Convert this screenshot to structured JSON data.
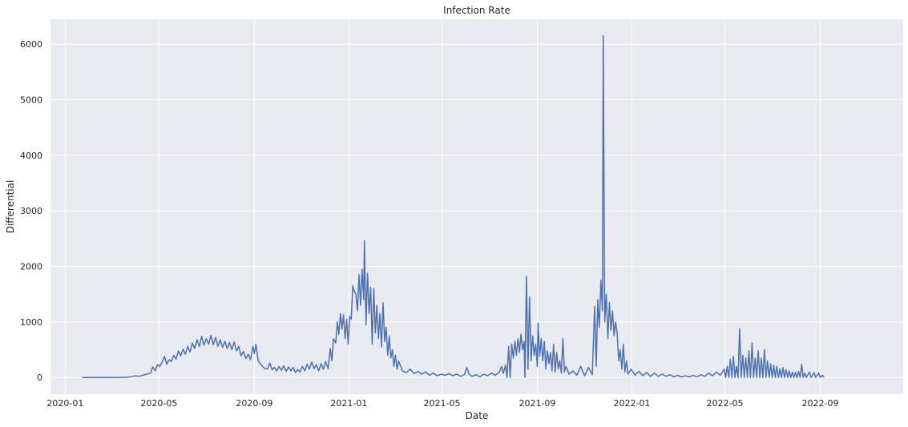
{
  "chart_data": {
    "type": "line",
    "title": "Infection Rate",
    "xlabel": "Date",
    "ylabel": "Differential",
    "x_ticks": [
      "2020-01",
      "2020-05",
      "2020-09",
      "2021-01",
      "2021-05",
      "2021-09",
      "2022-01",
      "2022-05",
      "2022-09"
    ],
    "y_ticks": [
      "0",
      "1000",
      "2000",
      "3000",
      "4000",
      "5000",
      "6000"
    ],
    "xlim_days": [
      -19,
      1081
    ],
    "ylim": [
      -300,
      6450
    ],
    "grid": true,
    "series": [
      {
        "name": "Differential",
        "color": "#4c72b0",
        "x_unit": "days since 2020-01-01",
        "points": [
          [
            22,
            0
          ],
          [
            30,
            0
          ],
          [
            40,
            0
          ],
          [
            50,
            0
          ],
          [
            60,
            0
          ],
          [
            70,
            2
          ],
          [
            80,
            5
          ],
          [
            85,
            15
          ],
          [
            90,
            30
          ],
          [
            95,
            20
          ],
          [
            100,
            40
          ],
          [
            105,
            60
          ],
          [
            110,
            80
          ],
          [
            113,
            190
          ],
          [
            116,
            120
          ],
          [
            119,
            230
          ],
          [
            122,
            200
          ],
          [
            125,
            280
          ],
          [
            128,
            380
          ],
          [
            131,
            240
          ],
          [
            134,
            320
          ],
          [
            137,
            290
          ],
          [
            140,
            400
          ],
          [
            143,
            330
          ],
          [
            146,
            480
          ],
          [
            149,
            390
          ],
          [
            152,
            510
          ],
          [
            155,
            420
          ],
          [
            158,
            560
          ],
          [
            161,
            460
          ],
          [
            164,
            620
          ],
          [
            167,
            520
          ],
          [
            170,
            680
          ],
          [
            173,
            560
          ],
          [
            176,
            740
          ],
          [
            179,
            580
          ],
          [
            182,
            700
          ],
          [
            185,
            600
          ],
          [
            188,
            760
          ],
          [
            191,
            590
          ],
          [
            194,
            720
          ],
          [
            197,
            560
          ],
          [
            200,
            680
          ],
          [
            203,
            540
          ],
          [
            206,
            650
          ],
          [
            209,
            520
          ],
          [
            212,
            630
          ],
          [
            215,
            500
          ],
          [
            218,
            640
          ],
          [
            221,
            480
          ],
          [
            224,
            560
          ],
          [
            227,
            390
          ],
          [
            230,
            470
          ],
          [
            233,
            340
          ],
          [
            236,
            420
          ],
          [
            239,
            320
          ],
          [
            242,
            560
          ],
          [
            244,
            430
          ],
          [
            246,
            600
          ],
          [
            249,
            300
          ],
          [
            252,
            240
          ],
          [
            255,
            190
          ],
          [
            258,
            160
          ],
          [
            261,
            150
          ],
          [
            264,
            260
          ],
          [
            267,
            140
          ],
          [
            270,
            180
          ],
          [
            273,
            120
          ],
          [
            276,
            200
          ],
          [
            279,
            130
          ],
          [
            282,
            210
          ],
          [
            285,
            110
          ],
          [
            288,
            190
          ],
          [
            291,
            120
          ],
          [
            294,
            180
          ],
          [
            297,
            90
          ],
          [
            300,
            140
          ],
          [
            303,
            100
          ],
          [
            306,
            200
          ],
          [
            309,
            120
          ],
          [
            312,
            240
          ],
          [
            315,
            150
          ],
          [
            318,
            280
          ],
          [
            321,
            160
          ],
          [
            324,
            230
          ],
          [
            327,
            120
          ],
          [
            330,
            250
          ],
          [
            333,
            150
          ],
          [
            336,
            290
          ],
          [
            339,
            160
          ],
          [
            342,
            520
          ],
          [
            344,
            300
          ],
          [
            346,
            700
          ],
          [
            349,
            620
          ],
          [
            351,
            1000
          ],
          [
            353,
            780
          ],
          [
            355,
            1150
          ],
          [
            357,
            870
          ],
          [
            359,
            1130
          ],
          [
            361,
            700
          ],
          [
            363,
            1050
          ],
          [
            365,
            600
          ],
          [
            367,
            1100
          ],
          [
            369,
            1050
          ],
          [
            371,
            1650
          ],
          [
            373,
            1550
          ],
          [
            375,
            1500
          ],
          [
            377,
            1200
          ],
          [
            379,
            1850
          ],
          [
            381,
            1300
          ],
          [
            383,
            1950
          ],
          [
            385,
            1400
          ],
          [
            386,
            2460
          ],
          [
            388,
            950
          ],
          [
            390,
            1880
          ],
          [
            392,
            1150
          ],
          [
            394,
            1620
          ],
          [
            396,
            600
          ],
          [
            398,
            1600
          ],
          [
            400,
            800
          ],
          [
            402,
            1300
          ],
          [
            404,
            700
          ],
          [
            406,
            1150
          ],
          [
            408,
            550
          ],
          [
            410,
            1350
          ],
          [
            412,
            650
          ],
          [
            414,
            900
          ],
          [
            416,
            400
          ],
          [
            418,
            750
          ],
          [
            420,
            350
          ],
          [
            422,
            500
          ],
          [
            424,
            200
          ],
          [
            426,
            400
          ],
          [
            428,
            150
          ],
          [
            430,
            300
          ],
          [
            435,
            120
          ],
          [
            440,
            90
          ],
          [
            445,
            150
          ],
          [
            450,
            70
          ],
          [
            455,
            110
          ],
          [
            460,
            60
          ],
          [
            465,
            100
          ],
          [
            470,
            40
          ],
          [
            475,
            80
          ],
          [
            480,
            30
          ],
          [
            485,
            60
          ],
          [
            490,
            40
          ],
          [
            495,
            70
          ],
          [
            500,
            30
          ],
          [
            505,
            60
          ],
          [
            510,
            20
          ],
          [
            515,
            50
          ],
          [
            518,
            180
          ],
          [
            521,
            60
          ],
          [
            525,
            20
          ],
          [
            530,
            50
          ],
          [
            535,
            10
          ],
          [
            540,
            60
          ],
          [
            545,
            30
          ],
          [
            550,
            80
          ],
          [
            555,
            40
          ],
          [
            560,
            100
          ],
          [
            563,
            200
          ],
          [
            565,
            70
          ],
          [
            568,
            220
          ],
          [
            570,
            0
          ],
          [
            572,
            560
          ],
          [
            574,
            0
          ],
          [
            576,
            600
          ],
          [
            578,
            350
          ],
          [
            580,
            650
          ],
          [
            582,
            400
          ],
          [
            584,
            700
          ],
          [
            586,
            450
          ],
          [
            588,
            780
          ],
          [
            590,
            500
          ],
          [
            592,
            650
          ],
          [
            593,
            0
          ],
          [
            595,
            1820
          ],
          [
            597,
            150
          ],
          [
            599,
            1450
          ],
          [
            601,
            300
          ],
          [
            603,
            750
          ],
          [
            605,
            400
          ],
          [
            607,
            600
          ],
          [
            609,
            200
          ],
          [
            610,
            980
          ],
          [
            612,
            380
          ],
          [
            614,
            700
          ],
          [
            616,
            300
          ],
          [
            618,
            650
          ],
          [
            620,
            150
          ],
          [
            622,
            480
          ],
          [
            624,
            250
          ],
          [
            626,
            450
          ],
          [
            628,
            120
          ],
          [
            630,
            600
          ],
          [
            632,
            100
          ],
          [
            634,
            450
          ],
          [
            636,
            150
          ],
          [
            638,
            300
          ],
          [
            640,
            80
          ],
          [
            642,
            700
          ],
          [
            644,
            100
          ],
          [
            646,
            200
          ],
          [
            650,
            60
          ],
          [
            655,
            120
          ],
          [
            660,
            40
          ],
          [
            665,
            200
          ],
          [
            670,
            30
          ],
          [
            675,
            180
          ],
          [
            680,
            50
          ],
          [
            683,
            1280
          ],
          [
            685,
            200
          ],
          [
            687,
            1400
          ],
          [
            689,
            900
          ],
          [
            691,
            1750
          ],
          [
            693,
            1200
          ],
          [
            694,
            6150
          ],
          [
            696,
            1000
          ],
          [
            698,
            1500
          ],
          [
            700,
            700
          ],
          [
            702,
            1350
          ],
          [
            704,
            850
          ],
          [
            706,
            1200
          ],
          [
            708,
            750
          ],
          [
            710,
            1000
          ],
          [
            712,
            800
          ],
          [
            714,
            300
          ],
          [
            716,
            500
          ],
          [
            718,
            150
          ],
          [
            720,
            600
          ],
          [
            722,
            100
          ],
          [
            724,
            300
          ],
          [
            726,
            60
          ],
          [
            730,
            150
          ],
          [
            735,
            40
          ],
          [
            740,
            110
          ],
          [
            745,
            30
          ],
          [
            750,
            90
          ],
          [
            755,
            20
          ],
          [
            760,
            80
          ],
          [
            765,
            20
          ],
          [
            770,
            60
          ],
          [
            775,
            20
          ],
          [
            780,
            50
          ],
          [
            785,
            10
          ],
          [
            790,
            40
          ],
          [
            795,
            10
          ],
          [
            800,
            30
          ],
          [
            805,
            10
          ],
          [
            810,
            40
          ],
          [
            815,
            10
          ],
          [
            820,
            50
          ],
          [
            825,
            20
          ],
          [
            830,
            80
          ],
          [
            835,
            30
          ],
          [
            840,
            100
          ],
          [
            845,
            40
          ],
          [
            850,
            150
          ],
          [
            852,
            0
          ],
          [
            854,
            200
          ],
          [
            856,
            0
          ],
          [
            858,
            330
          ],
          [
            860,
            0
          ],
          [
            862,
            380
          ],
          [
            864,
            0
          ],
          [
            866,
            200
          ],
          [
            868,
            0
          ],
          [
            870,
            880
          ],
          [
            872,
            0
          ],
          [
            874,
            400
          ],
          [
            876,
            0
          ],
          [
            878,
            350
          ],
          [
            880,
            0
          ],
          [
            882,
            480
          ],
          [
            884,
            0
          ],
          [
            886,
            620
          ],
          [
            888,
            0
          ],
          [
            890,
            350
          ],
          [
            892,
            0
          ],
          [
            894,
            480
          ],
          [
            896,
            0
          ],
          [
            898,
            350
          ],
          [
            900,
            0
          ],
          [
            902,
            500
          ],
          [
            904,
            0
          ],
          [
            906,
            300
          ],
          [
            908,
            0
          ],
          [
            910,
            250
          ],
          [
            912,
            0
          ],
          [
            914,
            220
          ],
          [
            916,
            0
          ],
          [
            918,
            200
          ],
          [
            920,
            0
          ],
          [
            922,
            160
          ],
          [
            924,
            0
          ],
          [
            926,
            180
          ],
          [
            928,
            0
          ],
          [
            930,
            140
          ],
          [
            932,
            0
          ],
          [
            934,
            120
          ],
          [
            936,
            0
          ],
          [
            938,
            100
          ],
          [
            940,
            0
          ],
          [
            942,
            90
          ],
          [
            944,
            0
          ],
          [
            946,
            110
          ],
          [
            948,
            0
          ],
          [
            950,
            240
          ],
          [
            952,
            0
          ],
          [
            954,
            80
          ],
          [
            956,
            0
          ],
          [
            960,
            100
          ],
          [
            962,
            0
          ],
          [
            966,
            90
          ],
          [
            968,
            0
          ],
          [
            972,
            80
          ],
          [
            974,
            0
          ],
          [
            977,
            40
          ],
          [
            979,
            0
          ]
        ]
      }
    ]
  }
}
